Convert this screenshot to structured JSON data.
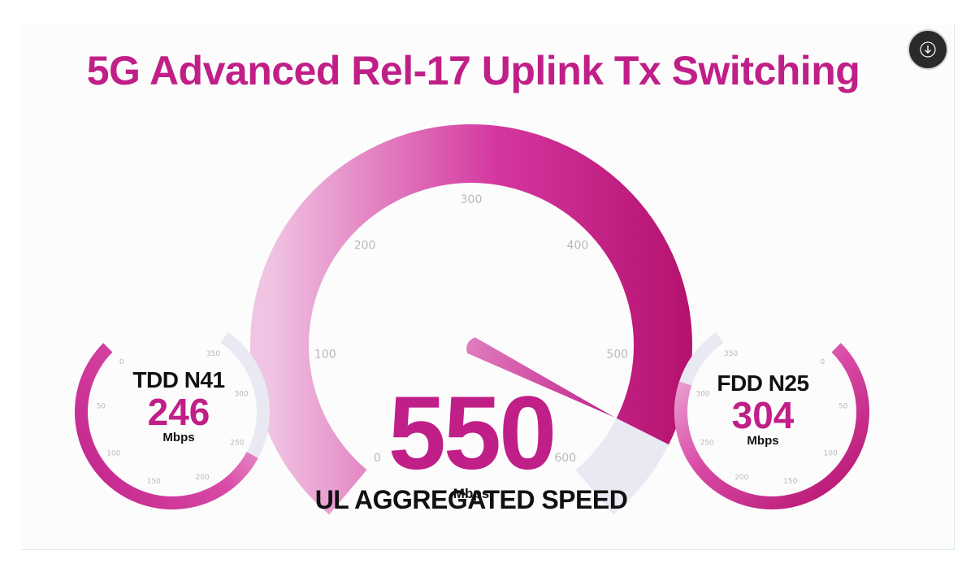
{
  "page": {
    "title": "5G Advanced Rel-17 Uplink Tx Switching"
  },
  "download_button": {
    "icon": "arrow-down-icon"
  },
  "colors": {
    "brand": "#c01f88",
    "arc_light": "#f0c4e2",
    "arc_dark": "#b5126f",
    "track": "#e8e9f3"
  },
  "chart_data": [
    {
      "type": "gauge",
      "id": "main",
      "title": "UL AGGREGATED SPEED",
      "value": 550,
      "value_text": "550",
      "unit": "Mbps",
      "range": [
        0,
        600
      ],
      "ticks": [
        0,
        100,
        200,
        300,
        400,
        500,
        600
      ]
    },
    {
      "type": "gauge",
      "id": "left",
      "title": "TDD N41",
      "value": 246,
      "value_text": "246",
      "unit": "Mbps",
      "range": [
        0,
        350
      ],
      "ticks": [
        0,
        50,
        100,
        150,
        200,
        250,
        300,
        350
      ]
    },
    {
      "type": "gauge",
      "id": "right",
      "title": "FDD N25",
      "value": 304,
      "value_text": "304",
      "unit": "Mbps",
      "range": [
        0,
        350
      ],
      "ticks": [
        0,
        50,
        100,
        150,
        200,
        250,
        300,
        350
      ]
    }
  ]
}
